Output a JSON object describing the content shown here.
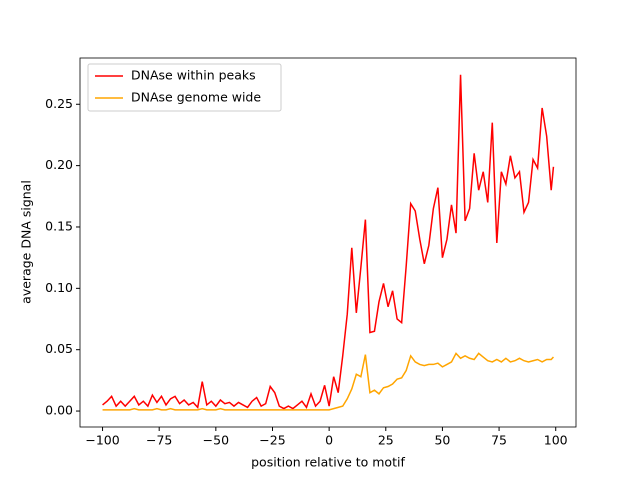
{
  "chart_data": {
    "type": "line",
    "xlabel": "position relative to motif",
    "ylabel": "average DNA signal",
    "x": [
      -100,
      -98,
      -96,
      -94,
      -92,
      -90,
      -88,
      -86,
      -84,
      -82,
      -80,
      -78,
      -76,
      -74,
      -72,
      -70,
      -68,
      -66,
      -64,
      -62,
      -60,
      -58,
      -56,
      -54,
      -52,
      -50,
      -48,
      -46,
      -44,
      -42,
      -40,
      -38,
      -36,
      -34,
      -32,
      -30,
      -28,
      -26,
      -24,
      -22,
      -20,
      -18,
      -16,
      -14,
      -12,
      -10,
      -8,
      -6,
      -4,
      -2,
      0,
      2,
      4,
      6,
      8,
      10,
      12,
      14,
      16,
      18,
      20,
      22,
      24,
      26,
      28,
      30,
      32,
      34,
      36,
      38,
      40,
      42,
      44,
      46,
      48,
      50,
      52,
      54,
      56,
      58,
      60,
      62,
      64,
      66,
      68,
      70,
      72,
      74,
      76,
      78,
      80,
      82,
      84,
      86,
      88,
      90,
      92,
      94,
      96,
      98,
      99
    ],
    "series": [
      {
        "name": "DNAse within peaks",
        "color": "#ff0000",
        "values": [
          0.005,
          0.008,
          0.012,
          0.004,
          0.008,
          0.004,
          0.008,
          0.012,
          0.005,
          0.008,
          0.004,
          0.013,
          0.007,
          0.012,
          0.005,
          0.01,
          0.012,
          0.006,
          0.009,
          0.005,
          0.007,
          0.003,
          0.024,
          0.005,
          0.008,
          0.004,
          0.009,
          0.006,
          0.007,
          0.004,
          0.007,
          0.005,
          0.003,
          0.008,
          0.011,
          0.004,
          0.006,
          0.02,
          0.015,
          0.004,
          0.002,
          0.004,
          0.002,
          0.005,
          0.008,
          0.003,
          0.014,
          0.004,
          0.008,
          0.021,
          0.004,
          0.028,
          0.015,
          0.045,
          0.079,
          0.133,
          0.08,
          0.117,
          0.156,
          0.064,
          0.065,
          0.089,
          0.104,
          0.085,
          0.098,
          0.075,
          0.072,
          0.118,
          0.169,
          0.163,
          0.14,
          0.12,
          0.135,
          0.165,
          0.182,
          0.125,
          0.14,
          0.168,
          0.145,
          0.274,
          0.155,
          0.165,
          0.21,
          0.18,
          0.195,
          0.17,
          0.235,
          0.137,
          0.195,
          0.185,
          0.208,
          0.19,
          0.195,
          0.162,
          0.17,
          0.205,
          0.198,
          0.247,
          0.224,
          0.18,
          0.199
        ]
      },
      {
        "name": "DNAse genome wide",
        "color": "#ffa500",
        "values": [
          0.001,
          0.001,
          0.001,
          0.001,
          0.001,
          0.001,
          0.001,
          0.002,
          0.001,
          0.001,
          0.001,
          0.001,
          0.002,
          0.001,
          0.001,
          0.002,
          0.001,
          0.001,
          0.001,
          0.001,
          0.001,
          0.001,
          0.002,
          0.001,
          0.001,
          0.001,
          0.002,
          0.001,
          0.001,
          0.001,
          0.001,
          0.001,
          0.001,
          0.001,
          0.001,
          0.001,
          0.001,
          0.001,
          0.001,
          0.001,
          0.001,
          0.001,
          0.001,
          0.001,
          0.001,
          0.001,
          0.001,
          0.001,
          0.001,
          0.001,
          0.001,
          0.002,
          0.003,
          0.004,
          0.01,
          0.018,
          0.03,
          0.028,
          0.046,
          0.015,
          0.017,
          0.014,
          0.019,
          0.02,
          0.022,
          0.026,
          0.027,
          0.033,
          0.045,
          0.04,
          0.038,
          0.037,
          0.038,
          0.038,
          0.039,
          0.036,
          0.038,
          0.04,
          0.047,
          0.043,
          0.045,
          0.043,
          0.042,
          0.047,
          0.044,
          0.041,
          0.04,
          0.042,
          0.04,
          0.043,
          0.04,
          0.041,
          0.043,
          0.041,
          0.04,
          0.041,
          0.042,
          0.04,
          0.042,
          0.042,
          0.044
        ]
      }
    ],
    "xlim": [
      -109.95,
      108.95
    ],
    "ylim": [
      -0.013,
      0.2877
    ],
    "xticks": [
      {
        "value": -100,
        "label": "−100"
      },
      {
        "value": -75,
        "label": "−75"
      },
      {
        "value": -50,
        "label": "−50"
      },
      {
        "value": -25,
        "label": "−25"
      },
      0,
      25,
      50,
      75,
      100
    ],
    "yticks": [
      {
        "value": 0,
        "label": "0.00"
      },
      {
        "value": 0.05,
        "label": "0.05"
      },
      {
        "value": 0.1,
        "label": "0.10"
      },
      {
        "value": 0.15,
        "label": "0.15"
      },
      {
        "value": 0.2,
        "label": "0.20"
      },
      {
        "value": 0.25,
        "label": "0.25"
      }
    ],
    "legend": "upper left"
  }
}
